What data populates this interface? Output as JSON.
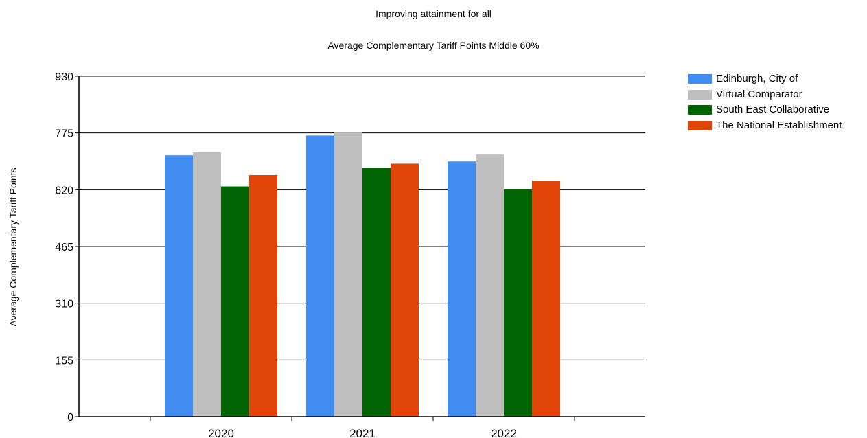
{
  "chart_data": {
    "type": "bar",
    "title": "Improving attainment for all",
    "subtitle": "Average Complementary Tariff Points Middle 60%",
    "ylabel": "Average Complementary Tariff Points",
    "xlabel": "",
    "categories": [
      "2020",
      "2021",
      "2022"
    ],
    "ylim": [
      0,
      930
    ],
    "yticks": [
      0,
      155,
      310,
      465,
      620,
      775,
      930
    ],
    "grid": true,
    "legend_position": "top-right",
    "series": [
      {
        "name": "Edinburgh, City of",
        "color": "#418CF0",
        "values": [
          714,
          768,
          697
        ]
      },
      {
        "name": "Virtual Comparator",
        "color": "#BFBFBF",
        "values": [
          722,
          776,
          716
        ]
      },
      {
        "name": "South East Collaborative",
        "color": "#006400",
        "values": [
          629,
          680,
          621
        ]
      },
      {
        "name": "The National Establishment",
        "color": "#DF4408",
        "values": [
          660,
          691,
          645
        ]
      }
    ]
  }
}
